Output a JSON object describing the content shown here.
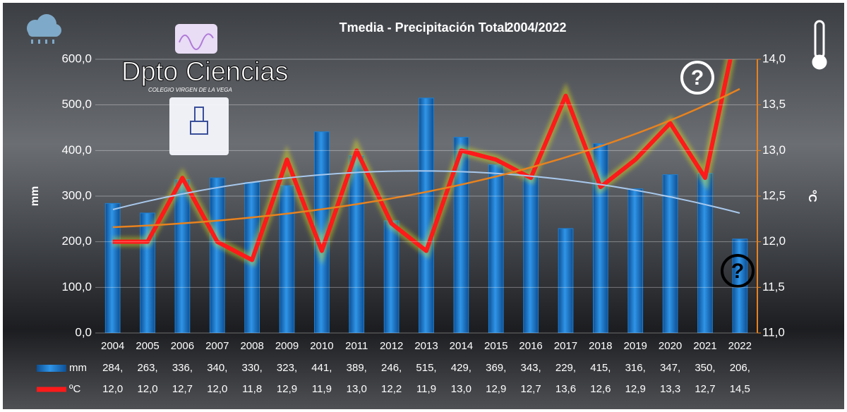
{
  "chart_data": {
    "type": "bar-line",
    "title": "Tmedia - Precipitación Total",
    "period": "2004/2022",
    "logo_title": "Dpto Ciencias",
    "logo_subtitle": "COLEGIO VIRGEN DE LA VEGA",
    "ylabel": "mm",
    "y2label": "ºC",
    "categories": [
      "2004",
      "2005",
      "2006",
      "2007",
      "2008",
      "2009",
      "2010",
      "2011",
      "2012",
      "2013",
      "2014",
      "2015",
      "2016",
      "2017",
      "2018",
      "2019",
      "2020",
      "2021",
      "2022"
    ],
    "series": [
      {
        "name": "mm",
        "type": "bar",
        "color": "#1f7fd0",
        "values": [
          284,
          263,
          336,
          340,
          330,
          323,
          441,
          389,
          246,
          515,
          429,
          369,
          343,
          229,
          415,
          316,
          347,
          350,
          206
        ],
        "value_labels": [
          "284,",
          "263,",
          "336,",
          "340,",
          "330,",
          "323,",
          "441,",
          "389,",
          "246,",
          "515,",
          "429,",
          "369,",
          "343,",
          "229,",
          "415,",
          "316,",
          "347,",
          "350,",
          "206,"
        ]
      },
      {
        "name": "ºC",
        "type": "line",
        "axis": "y2",
        "color": "#ff1a1a",
        "values": [
          12.0,
          12.0,
          12.7,
          12.0,
          11.8,
          12.9,
          11.9,
          13.0,
          12.2,
          11.9,
          13.0,
          12.9,
          12.7,
          13.6,
          12.6,
          12.9,
          13.3,
          12.7,
          14.5
        ],
        "value_labels": [
          "12,0",
          "12,0",
          "12,7",
          "12,0",
          "11,8",
          "12,9",
          "11,9",
          "13,0",
          "12,2",
          "11,9",
          "13,0",
          "12,9",
          "12,7",
          "13,6",
          "12,6",
          "12,9",
          "13,3",
          "12,7",
          "14,5"
        ]
      }
    ],
    "ylim": [
      0,
      600
    ],
    "yticks": [
      {
        "value": 0,
        "label": "0,0"
      },
      {
        "value": 100,
        "label": "100,0"
      },
      {
        "value": 200,
        "label": "200,0"
      },
      {
        "value": 300,
        "label": "300,0"
      },
      {
        "value": 400,
        "label": "400,0"
      },
      {
        "value": 500,
        "label": "500,0"
      },
      {
        "value": 600,
        "label": "600,0"
      }
    ],
    "y2lim": [
      11,
      14
    ],
    "y2ticks": [
      {
        "value": 11,
        "label": "11,0"
      },
      {
        "value": 11.5,
        "label": "11,5"
      },
      {
        "value": 12,
        "label": "12,0"
      },
      {
        "value": 12.5,
        "label": "12,5"
      },
      {
        "value": 13,
        "label": "13,0"
      },
      {
        "value": 13.5,
        "label": "13,5"
      },
      {
        "value": 14,
        "label": "14,0"
      }
    ]
  }
}
